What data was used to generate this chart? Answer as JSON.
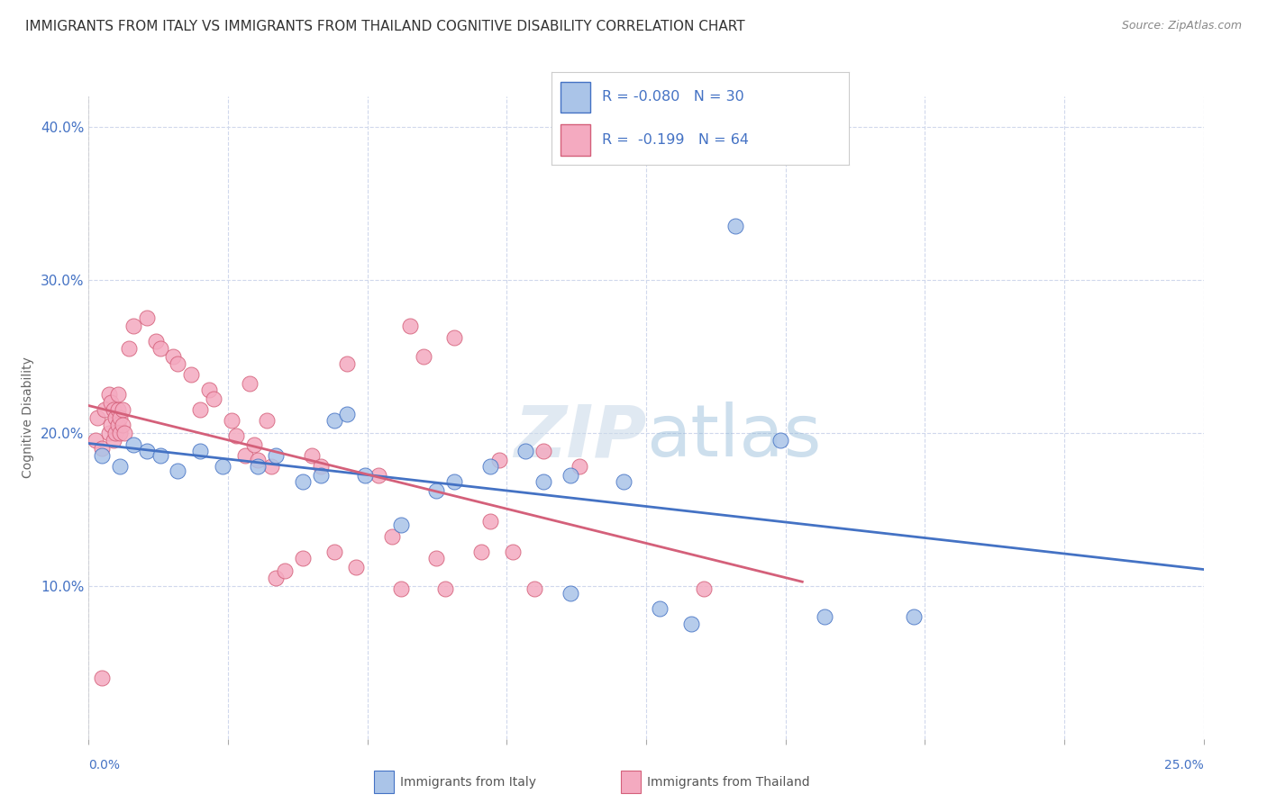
{
  "title": "IMMIGRANTS FROM ITALY VS IMMIGRANTS FROM THAILAND COGNITIVE DISABILITY CORRELATION CHART",
  "source": "Source: ZipAtlas.com",
  "ylabel": "Cognitive Disability",
  "watermark": "ZIPatlas",
  "legend": {
    "italy_r": "R = -0.080",
    "italy_n": "N = 30",
    "thailand_r": "R =  -0.199",
    "thailand_n": "N = 64"
  },
  "italy_color": "#aac4e8",
  "thailand_color": "#f4aac0",
  "italy_line_color": "#4472c4",
  "thailand_line_color": "#d4607a",
  "italy_scatter": [
    [
      0.3,
      18.5
    ],
    [
      0.7,
      17.8
    ],
    [
      1.0,
      19.2
    ],
    [
      1.3,
      18.8
    ],
    [
      1.6,
      18.5
    ],
    [
      2.0,
      17.5
    ],
    [
      2.5,
      18.8
    ],
    [
      3.0,
      17.8
    ],
    [
      3.8,
      17.8
    ],
    [
      4.2,
      18.5
    ],
    [
      4.8,
      16.8
    ],
    [
      5.2,
      17.2
    ],
    [
      5.5,
      20.8
    ],
    [
      5.8,
      21.2
    ],
    [
      6.2,
      17.2
    ],
    [
      7.0,
      14.0
    ],
    [
      7.8,
      16.2
    ],
    [
      8.2,
      16.8
    ],
    [
      9.0,
      17.8
    ],
    [
      9.8,
      18.8
    ],
    [
      10.2,
      16.8
    ],
    [
      10.8,
      17.2
    ],
    [
      10.8,
      9.5
    ],
    [
      12.0,
      16.8
    ],
    [
      12.8,
      8.5
    ],
    [
      13.5,
      7.5
    ],
    [
      14.5,
      33.5
    ],
    [
      15.5,
      19.5
    ],
    [
      16.5,
      8.0
    ],
    [
      18.5,
      8.0
    ]
  ],
  "thailand_scatter": [
    [
      0.15,
      19.5
    ],
    [
      0.2,
      21.0
    ],
    [
      0.3,
      19.0
    ],
    [
      0.35,
      21.5
    ],
    [
      0.45,
      22.5
    ],
    [
      0.45,
      20.0
    ],
    [
      0.5,
      22.0
    ],
    [
      0.5,
      20.5
    ],
    [
      0.55,
      21.5
    ],
    [
      0.55,
      19.5
    ],
    [
      0.6,
      21.0
    ],
    [
      0.6,
      20.0
    ],
    [
      0.65,
      20.5
    ],
    [
      0.65,
      21.5
    ],
    [
      0.65,
      22.5
    ],
    [
      0.7,
      21.0
    ],
    [
      0.7,
      20.0
    ],
    [
      0.75,
      21.5
    ],
    [
      0.75,
      20.5
    ],
    [
      0.8,
      20.0
    ],
    [
      0.9,
      25.5
    ],
    [
      1.0,
      27.0
    ],
    [
      1.3,
      27.5
    ],
    [
      1.5,
      26.0
    ],
    [
      1.6,
      25.5
    ],
    [
      1.9,
      25.0
    ],
    [
      2.0,
      24.5
    ],
    [
      2.3,
      23.8
    ],
    [
      2.5,
      21.5
    ],
    [
      2.7,
      22.8
    ],
    [
      2.8,
      22.2
    ],
    [
      3.2,
      20.8
    ],
    [
      3.3,
      19.8
    ],
    [
      3.5,
      18.5
    ],
    [
      3.6,
      23.2
    ],
    [
      3.7,
      19.2
    ],
    [
      3.8,
      18.2
    ],
    [
      4.0,
      20.8
    ],
    [
      4.1,
      17.8
    ],
    [
      4.2,
      10.5
    ],
    [
      4.4,
      11.0
    ],
    [
      4.8,
      11.8
    ],
    [
      5.0,
      18.5
    ],
    [
      5.2,
      17.8
    ],
    [
      5.5,
      12.2
    ],
    [
      5.8,
      24.5
    ],
    [
      6.0,
      11.2
    ],
    [
      6.5,
      17.2
    ],
    [
      6.8,
      13.2
    ],
    [
      7.0,
      9.8
    ],
    [
      7.2,
      27.0
    ],
    [
      7.5,
      25.0
    ],
    [
      7.8,
      11.8
    ],
    [
      8.0,
      9.8
    ],
    [
      8.2,
      26.2
    ],
    [
      8.8,
      12.2
    ],
    [
      9.0,
      14.2
    ],
    [
      9.2,
      18.2
    ],
    [
      9.5,
      12.2
    ],
    [
      10.0,
      9.8
    ],
    [
      10.2,
      18.8
    ],
    [
      11.0,
      17.8
    ],
    [
      13.8,
      9.8
    ],
    [
      0.3,
      4.0
    ]
  ],
  "xlim": [
    0.0,
    25.0
  ],
  "ylim": [
    0.0,
    42.0
  ],
  "yticks": [
    10.0,
    20.0,
    30.0,
    40.0
  ],
  "ytick_labels": [
    "10.0%",
    "20.0%",
    "30.0%",
    "40.0%"
  ],
  "xtick_positions": [
    0.0,
    3.125,
    6.25,
    9.375,
    12.5,
    15.625,
    18.75,
    21.875,
    25.0
  ],
  "background_color": "#ffffff",
  "title_fontsize": 11,
  "label_fontsize": 10,
  "tick_color": "#4472c4",
  "grid_color": "#d0d8ec"
}
